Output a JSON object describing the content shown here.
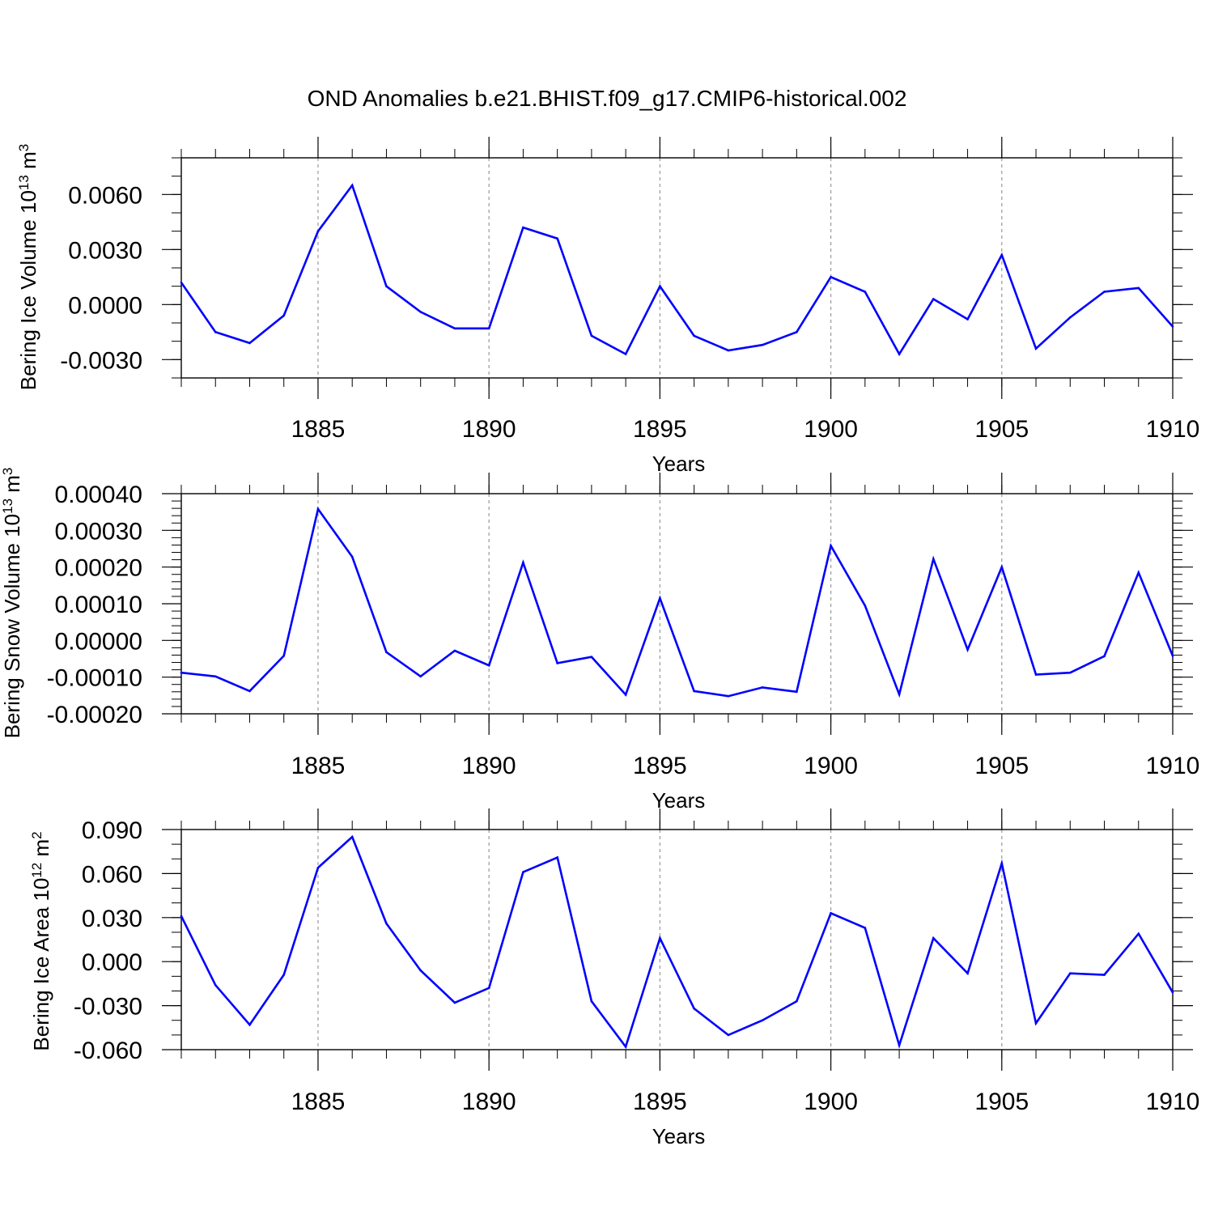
{
  "title": "OND Anomalies b.e21.BHIST.f09_g17.CMIP6-historical.002",
  "colors": {
    "line": "#0000ff",
    "axis": "#000000",
    "grid": "#999999"
  },
  "chart_data": [
    {
      "type": "line",
      "ylabel": {
        "text": "Bering Ice Volume 10",
        "exp": "13",
        "unit": " m",
        "unit_exp": "3"
      },
      "xlabel": "Years",
      "xlim": [
        1881,
        1910
      ],
      "ylim": [
        -0.004,
        0.008
      ],
      "xticks": [
        "1885",
        "1890",
        "1895",
        "1900",
        "1905",
        "1910"
      ],
      "yticks": [
        "0.0060",
        "0.0030",
        "0.0000",
        "-0.0030"
      ],
      "ytick_values": [
        0.006,
        0.003,
        0.0,
        -0.003
      ],
      "yminor_step": 0.001,
      "x": [
        1881,
        1882,
        1883,
        1884,
        1885,
        1886,
        1887,
        1888,
        1889,
        1890,
        1891,
        1892,
        1893,
        1894,
        1895,
        1896,
        1897,
        1898,
        1899,
        1900,
        1901,
        1902,
        1903,
        1904,
        1905,
        1906,
        1907,
        1908,
        1909,
        1910
      ],
      "values": [
        0.0012,
        -0.0015,
        -0.0021,
        -0.0006,
        0.004,
        0.0065,
        0.001,
        -0.0004,
        -0.0013,
        -0.0013,
        0.0042,
        0.0036,
        -0.0017,
        -0.0027,
        0.001,
        -0.0017,
        -0.0025,
        -0.0022,
        -0.0015,
        0.0015,
        0.0007,
        -0.0027,
        0.0003,
        -0.0008,
        0.0027,
        -0.0024,
        -0.0007,
        0.0007,
        0.0009,
        -0.0012
      ]
    },
    {
      "type": "line",
      "ylabel": {
        "text": "Bering Snow Volume 10",
        "exp": "13",
        "unit": " m",
        "unit_exp": "3"
      },
      "xlabel": "Years",
      "xlim": [
        1881,
        1910
      ],
      "ylim": [
        -0.0002,
        0.0004
      ],
      "xticks": [
        "1885",
        "1890",
        "1895",
        "1900",
        "1905",
        "1910"
      ],
      "yticks": [
        "0.00040",
        "0.00030",
        "0.00020",
        "0.00010",
        "0.00000",
        "-0.00010",
        "-0.00020"
      ],
      "ytick_values": [
        0.0004,
        0.0003,
        0.0002,
        0.0001,
        0.0,
        -0.0001,
        -0.0002
      ],
      "yminor_step": 2e-05,
      "x": [
        1881,
        1882,
        1883,
        1884,
        1885,
        1886,
        1887,
        1888,
        1889,
        1890,
        1891,
        1892,
        1893,
        1894,
        1895,
        1896,
        1897,
        1898,
        1899,
        1900,
        1901,
        1902,
        1903,
        1904,
        1905,
        1906,
        1907,
        1908,
        1909,
        1910
      ],
      "values": [
        -8.8e-05,
        -9.8e-05,
        -0.000138,
        -4.2e-05,
        0.000358,
        0.000228,
        -3.2e-05,
        -9.8e-05,
        -2.8e-05,
        -6.8e-05,
        0.000212,
        -6.2e-05,
        -4.5e-05,
        -0.000148,
        0.000115,
        -0.000138,
        -0.000152,
        -0.000128,
        -0.00014,
        0.000258,
        9.5e-05,
        -0.000147,
        0.000222,
        -2.5e-05,
        0.0002,
        -9.3e-05,
        -8.8e-05,
        -4.3e-05,
        0.000185,
        -4.2e-05
      ]
    },
    {
      "type": "line",
      "ylabel": {
        "text": "Bering Ice Area 10",
        "exp": "12",
        "unit": " m",
        "unit_exp": "2"
      },
      "xlabel": "Years",
      "xlim": [
        1881,
        1910
      ],
      "ylim": [
        -0.06,
        0.09
      ],
      "xticks": [
        "1885",
        "1890",
        "1895",
        "1900",
        "1905",
        "1910"
      ],
      "yticks": [
        "0.090",
        "0.060",
        "0.030",
        "0.000",
        "-0.030",
        "-0.060"
      ],
      "ytick_values": [
        0.09,
        0.06,
        0.03,
        0.0,
        -0.03,
        -0.06
      ],
      "yminor_step": 0.01,
      "x": [
        1881,
        1882,
        1883,
        1884,
        1885,
        1886,
        1887,
        1888,
        1889,
        1890,
        1891,
        1892,
        1893,
        1894,
        1895,
        1896,
        1897,
        1898,
        1899,
        1900,
        1901,
        1902,
        1903,
        1904,
        1905,
        1906,
        1907,
        1908,
        1909,
        1910
      ],
      "values": [
        0.031,
        -0.016,
        -0.043,
        -0.009,
        0.064,
        0.085,
        0.026,
        -0.006,
        -0.028,
        -0.018,
        0.061,
        0.071,
        -0.027,
        -0.058,
        0.016,
        -0.032,
        -0.05,
        -0.04,
        -0.027,
        0.033,
        0.023,
        -0.057,
        0.016,
        -0.008,
        0.067,
        -0.042,
        -0.008,
        -0.009,
        0.019,
        -0.021
      ]
    }
  ]
}
